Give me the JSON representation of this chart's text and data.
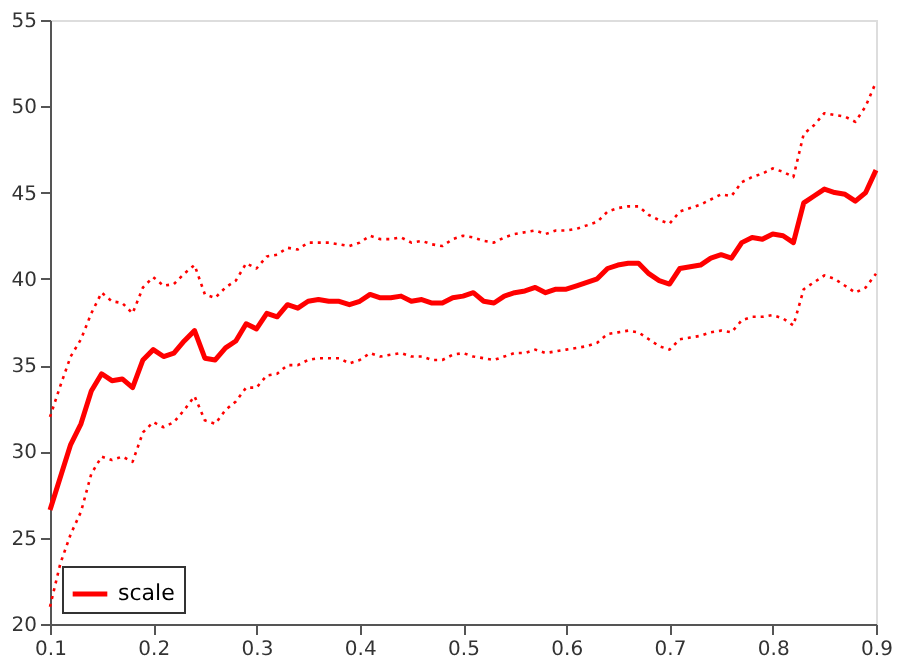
{
  "chart_data": {
    "type": "line",
    "x": [
      0.1,
      0.11,
      0.12,
      0.13,
      0.14,
      0.15,
      0.16,
      0.17,
      0.18,
      0.19,
      0.2,
      0.21,
      0.22,
      0.23,
      0.24,
      0.25,
      0.26,
      0.27,
      0.28,
      0.29,
      0.3,
      0.31,
      0.32,
      0.33,
      0.34,
      0.35,
      0.36,
      0.37,
      0.38,
      0.39,
      0.4,
      0.41,
      0.42,
      0.43,
      0.44,
      0.45,
      0.46,
      0.47,
      0.48,
      0.49,
      0.5,
      0.51,
      0.52,
      0.53,
      0.54,
      0.55,
      0.56,
      0.57,
      0.58,
      0.59,
      0.6,
      0.61,
      0.62,
      0.63,
      0.64,
      0.65,
      0.66,
      0.67,
      0.68,
      0.69,
      0.7,
      0.71,
      0.72,
      0.73,
      0.74,
      0.75,
      0.76,
      0.77,
      0.78,
      0.79,
      0.8,
      0.81,
      0.82,
      0.83,
      0.84,
      0.85,
      0.86,
      0.87,
      0.88,
      0.89,
      0.9
    ],
    "series": [
      {
        "name": "scale",
        "color": "#ff0000",
        "line_style": "solid",
        "values": [
          26.6,
          28.5,
          30.4,
          31.6,
          33.5,
          34.5,
          34.1,
          34.2,
          33.7,
          35.3,
          35.9,
          35.5,
          35.7,
          36.4,
          37.0,
          35.4,
          35.3,
          36.0,
          36.4,
          37.4,
          37.1,
          38.0,
          37.8,
          38.5,
          38.3,
          38.7,
          38.8,
          38.7,
          38.7,
          38.5,
          38.7,
          39.1,
          38.9,
          38.9,
          39.0,
          38.7,
          38.8,
          38.6,
          38.6,
          38.9,
          39.0,
          39.2,
          38.7,
          38.6,
          39.0,
          39.2,
          39.3,
          39.5,
          39.2,
          39.4,
          39.4,
          39.6,
          39.8,
          40.0,
          40.6,
          40.8,
          40.9,
          40.9,
          40.3,
          39.9,
          39.7,
          40.6,
          40.7,
          40.8,
          41.2,
          41.4,
          41.2,
          42.1,
          42.4,
          42.3,
          42.6,
          42.5,
          42.1,
          44.4,
          44.8,
          45.2,
          45.0,
          44.9,
          44.5,
          45.0,
          46.3
        ]
      },
      {
        "color": "#ff0000",
        "line_style": "dotted",
        "values": [
          32.0,
          33.8,
          35.5,
          36.5,
          38.0,
          39.2,
          38.7,
          38.6,
          38.0,
          39.5,
          40.1,
          39.6,
          39.7,
          40.3,
          40.8,
          39.1,
          38.9,
          39.5,
          39.9,
          40.9,
          40.6,
          41.3,
          41.4,
          41.8,
          41.7,
          42.1,
          42.1,
          42.1,
          42.0,
          41.9,
          42.1,
          42.5,
          42.3,
          42.3,
          42.4,
          42.1,
          42.2,
          42.0,
          41.9,
          42.3,
          42.5,
          42.4,
          42.2,
          42.1,
          42.4,
          42.6,
          42.7,
          42.8,
          42.6,
          42.8,
          42.8,
          42.9,
          43.1,
          43.3,
          43.9,
          44.1,
          44.2,
          44.2,
          43.7,
          43.4,
          43.2,
          43.9,
          44.1,
          44.3,
          44.6,
          44.9,
          44.8,
          45.6,
          45.9,
          46.1,
          46.4,
          46.2,
          45.9,
          48.4,
          48.9,
          49.6,
          49.5,
          49.4,
          49.1,
          50.0,
          51.4
        ]
      },
      {
        "color": "#ff0000",
        "line_style": "dotted",
        "values": [
          21.0,
          23.5,
          25.2,
          26.5,
          28.7,
          29.7,
          29.5,
          29.7,
          29.4,
          31.1,
          31.7,
          31.4,
          31.7,
          32.4,
          33.2,
          31.8,
          31.6,
          32.4,
          32.9,
          33.7,
          33.7,
          34.4,
          34.5,
          35.0,
          35.0,
          35.3,
          35.4,
          35.4,
          35.4,
          35.1,
          35.3,
          35.7,
          35.5,
          35.6,
          35.7,
          35.5,
          35.5,
          35.3,
          35.3,
          35.6,
          35.7,
          35.5,
          35.4,
          35.3,
          35.5,
          35.7,
          35.7,
          35.9,
          35.7,
          35.8,
          35.9,
          36.0,
          36.1,
          36.3,
          36.8,
          36.9,
          37.0,
          36.9,
          36.5,
          36.1,
          35.9,
          36.5,
          36.6,
          36.7,
          36.9,
          37.0,
          36.9,
          37.6,
          37.8,
          37.8,
          37.9,
          37.7,
          37.3,
          39.4,
          39.8,
          40.2,
          40.0,
          39.6,
          39.2,
          39.5,
          40.3
        ]
      }
    ],
    "xlim": [
      0.1,
      0.9
    ],
    "xticks": [
      0.1,
      0.2,
      0.3,
      0.4,
      0.5,
      0.6,
      0.7,
      0.8,
      0.9
    ],
    "ylim": [
      20,
      55
    ],
    "yticks": [
      20,
      25,
      30,
      35,
      40,
      45,
      50,
      55
    ],
    "grid": false,
    "legend": "bottom left",
    "marker": "none"
  }
}
